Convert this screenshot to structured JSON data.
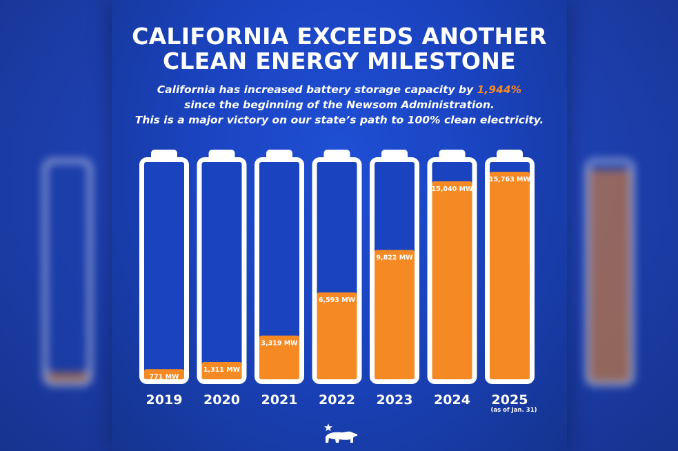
{
  "title_line1": "CALIFORNIA EXCEEDS ANOTHER",
  "title_line2": "CLEAN ENERGY MILESTONE",
  "subtitle_line1_pre": "California has increased battery storage capacity by ",
  "subtitle_highlight": "1,944%",
  "subtitle_line2": "since the beginning of the Newsom Administration.",
  "subtitle_line3": "This is a major victory on our state’s path to 100% clean electricity.",
  "footnote": "(as of Jan. 31)",
  "logo_icon": "california-bear-star-icon",
  "colors": {
    "background": "#1a43bf",
    "fill": "#f58a25",
    "battery_shell": "#ffffff",
    "text": "#ffffff"
  },
  "chart_data": {
    "type": "bar",
    "categories": [
      "2019",
      "2020",
      "2021",
      "2022",
      "2023",
      "2024",
      "2025"
    ],
    "values": [
      771,
      1311,
      3319,
      6593,
      9822,
      15040,
      15763
    ],
    "value_labels": [
      "771 MW",
      "1,311 MW",
      "3,319 MW",
      "6,593 MW",
      "9,822 MW",
      "15,040 MW",
      "15,763 MW"
    ],
    "unit": "MW",
    "ylim": [
      0,
      16500
    ],
    "grid": false
  }
}
